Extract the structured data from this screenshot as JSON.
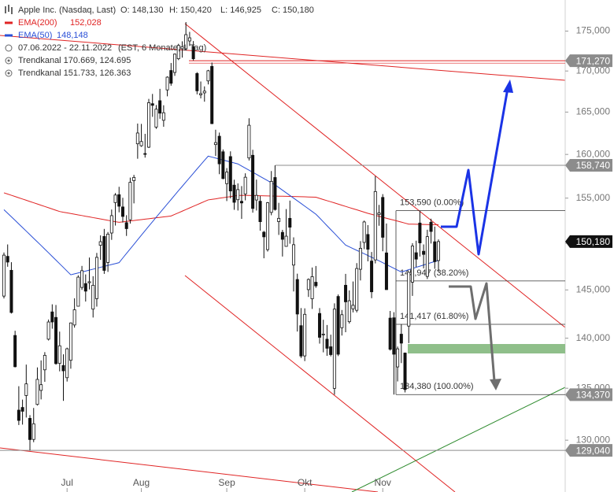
{
  "chart_data": {
    "type": "candlestick",
    "header": {
      "title": "Apple Inc. (Nasdaq, Last)",
      "quote": [
        "O: 148,130",
        "H: 150,420",
        "L: 146,925",
        "C: 150,180"
      ],
      "period": "07.06.2022 - 22.11.2022",
      "period_note": "(EST, 6 Monate, 1 Tag)",
      "studies": [
        "Trendkanal  170.669, 124.695",
        "Trendkanal  151.733, 126.363"
      ]
    },
    "log_scale": true,
    "ylim": [
      127000,
      179000
    ],
    "yticks": [
      {
        "value": 175000,
        "label": "175,000"
      },
      {
        "value": 170000,
        "label": "170,000"
      },
      {
        "value": 165000,
        "label": "165,000"
      },
      {
        "value": 160000,
        "label": "160,000"
      },
      {
        "value": 155000,
        "label": "155,000"
      },
      {
        "value": 150000,
        "label": "150,000"
      },
      {
        "value": 145000,
        "label": "145,000"
      },
      {
        "value": 140000,
        "label": "140,000"
      },
      {
        "value": 135000,
        "label": "135,000"
      },
      {
        "value": 130000,
        "label": "130,000"
      }
    ],
    "up_color": "#ffffff",
    "down_color": "#111111",
    "categories": [
      null,
      null,
      null,
      null,
      null,
      null,
      null,
      null,
      null,
      null,
      null,
      null,
      null,
      null,
      null,
      null,
      null,
      "Jul",
      null,
      null,
      null,
      null,
      null,
      null,
      null,
      null,
      null,
      null,
      null,
      null,
      null,
      null,
      null,
      null,
      null,
      null,
      null,
      "Aug",
      null,
      null,
      null,
      null,
      null,
      null,
      null,
      null,
      null,
      null,
      null,
      null,
      null,
      null,
      null,
      null,
      null,
      null,
      null,
      null,
      null,
      null,
      "Sep",
      null,
      null,
      null,
      null,
      null,
      null,
      null,
      null,
      null,
      null,
      null,
      null,
      null,
      null,
      null,
      null,
      null,
      null,
      null,
      null,
      "Okt",
      null,
      null,
      null,
      null,
      null,
      null,
      null,
      null,
      null,
      null,
      null,
      null,
      null,
      null,
      null,
      null,
      null,
      null,
      null,
      null,
      "Nov",
      null,
      null,
      null,
      null,
      null,
      null,
      null,
      null,
      null,
      null,
      null,
      null,
      null,
      null,
      null
    ],
    "open": [
      144350,
      148580,
      147080,
      140280,
      132870,
      133130,
      134290,
      132080,
      130070,
      133420,
      134790,
      136820,
      139900,
      142700,
      142130,
      137460,
      137250,
      136040,
      137770,
      141350,
      143290,
      145260,
      145670,
      145760,
      142990,
      144080,
      149780,
      150740,
      147920,
      151120,
      154500,
      155390,
      154010,
      152260,
      152580,
      156980,
      161240,
      161010,
      160100,
      160840,
      166010,
      163210,
      166370,
      164020,
      167680,
      170060,
      169820,
      171520,
      172780,
      172770,
      173750,
      173030,
      169690,
      167080,
      167320,
      168780,
      170570,
      161150,
      162130,
      160310,
      156640,
      159750,
      156470,
      154820,
      154640,
      155470,
      159590,
      159900,
      154790,
      154650,
      151210,
      149310,
      153400,
      157340,
      152380,
      151190,
      149660,
      152740,
      147640,
      146100,
      141280,
      138210,
      145030,
      144070,
      145810,
      142540,
      140420,
      139900,
      139130,
      134990,
      144310,
      141070,
      145490,
      141690,
      143020,
      142870,
      147190,
      150090,
      150960,
      148070,
      148200,
      153160,
      155080,
      148950,
      142060,
      142090,
      137110,
      140410,
      138500,
      141240,
      145820,
      148970,
      152220,
      149130,
      146430,
      152310,
      150160,
      148130
    ],
    "high": [
      149000,
      149870,
      147950,
      140760,
      135200,
      133890,
      137340,
      132390,
      133080,
      137060,
      137760,
      138590,
      141910,
      143490,
      143420,
      140670,
      138370,
      139040,
      141610,
      144120,
      146550,
      147550,
      146640,
      148450,
      146450,
      148950,
      150860,
      151570,
      151230,
      153720,
      155570,
      156280,
      155040,
      153090,
      157330,
      157640,
      163630,
      163590,
      162410,
      166590,
      167190,
      165850,
      167810,
      165820,
      169340,
      170990,
      172170,
      173390,
      173710,
      176150,
      174900,
      173740,
      169860,
      168710,
      168110,
      170140,
      171050,
      162900,
      162560,
      160580,
      158420,
      160360,
      157090,
      156670,
      156360,
      157820,
      164260,
      160540,
      157100,
      155240,
      151350,
      154560,
      158080,
      158740,
      154470,
      151470,
      153770,
      154720,
      150640,
      146720,
      143100,
      143070,
      146220,
      147380,
      147540,
      143100,
      141890,
      141350,
      140360,
      143590,
      144520,
      142900,
      146700,
      144950,
      145890,
      147850,
      150230,
      152490,
      151990,
      149050,
      157500,
      154240,
      155450,
      152170,
      142800,
      142670,
      139150,
      141430,
      138550,
      146870,
      150010,
      150280,
      153590,
      149870,
      151480,
      152700,
      151830,
      150420
    ],
    "low": [
      144100,
      147460,
      142530,
      137060,
      131440,
      131480,
      132160,
      129040,
      129810,
      133320,
      133910,
      135630,
      139770,
      140970,
      137330,
      136670,
      133770,
      135660,
      136930,
      141080,
      143280,
      145000,
      143780,
      145050,
      142120,
      143250,
      148200,
      146700,
      146910,
      150370,
      151940,
      153410,
      152280,
      150800,
      152160,
      154410,
      159500,
      160890,
      159630,
      160750,
      164430,
      163000,
      164200,
      163250,
      166900,
      168190,
      169400,
      171350,
      171660,
      172570,
      173120,
      171310,
      167140,
      166650,
      166250,
      168350,
      163560,
      159820,
      157720,
      157140,
      154670,
      154970,
      153690,
      153610,
      152680,
      154750,
      159300,
      153370,
      153610,
      151380,
      148370,
      149100,
      153080,
      153600,
      150910,
      148560,
      149640,
      149950,
      144840,
      140680,
      138000,
      137690,
      144260,
      143010,
      145220,
      139450,
      138570,
      138220,
      138160,
      134370,
      138190,
      140270,
      140610,
      141500,
      142650,
      142650,
      146000,
      149360,
      148040,
      144130,
      147820,
      151920,
      149130,
      145000,
      138750,
      134380,
      135670,
      137490,
      134590,
      139500,
      144370,
      147430,
      148560,
      147290,
      146150,
      149970,
      147240,
      146925
    ],
    "close": [
      148710,
      147960,
      142640,
      137130,
      131880,
      132760,
      135430,
      130060,
      131560,
      135870,
      135350,
      138270,
      141660,
      141660,
      137440,
      139230,
      136720,
      138930,
      141560,
      142920,
      146350,
      147040,
      144870,
      145860,
      145490,
      148470,
      150170,
      147070,
      151000,
      153040,
      155350,
      154090,
      152950,
      151600,
      156790,
      157350,
      162510,
      161510,
      160010,
      166130,
      165810,
      165350,
      164870,
      164920,
      169240,
      168490,
      172100,
      173190,
      173030,
      174550,
      174150,
      171520,
      167570,
      167230,
      167530,
      170030,
      163620,
      161380,
      158910,
      157220,
      157960,
      155810,
      154530,
      155960,
      154460,
      157370,
      163430,
      153840,
      155310,
      152370,
      150700,
      154480,
      156900,
      153720,
      152740,
      150430,
      150770,
      151760,
      149840,
      142480,
      138200,
      142450,
      146100,
      146400,
      145430,
      140090,
      140420,
      138980,
      138340,
      142990,
      138380,
      142410,
      143750,
      143860,
      143390,
      147270,
      149450,
      152340,
      149350,
      144800,
      155740,
      153340,
      150650,
      145030,
      138880,
      138380,
      138920,
      139500,
      134870,
      146870,
      149700,
      148280,
      150040,
      148790,
      150720,
      151290,
      148010,
      150180
    ],
    "series": [
      {
        "name": "EMA(200)",
        "last_label": "152,028",
        "color": "#e02424",
        "values": [
          155600,
          155460,
          155320,
          155180,
          155040,
          154900,
          154760,
          154620,
          154480,
          154340,
          154200,
          154060,
          153920,
          153780,
          153640,
          153500,
          153420,
          153350,
          153270,
          153200,
          153120,
          153050,
          152970,
          152900,
          152820,
          152750,
          152670,
          152600,
          152520,
          152450,
          152370,
          152300,
          152350,
          152400,
          152450,
          152500,
          152550,
          152600,
          152650,
          152700,
          152750,
          152800,
          152850,
          152900,
          152950,
          153000,
          153180,
          153360,
          153540,
          153720,
          153900,
          154080,
          154260,
          154440,
          154620,
          154800,
          154860,
          154920,
          154990,
          155050,
          155110,
          155170,
          155240,
          155300,
          155300,
          155300,
          155300,
          155290,
          155280,
          155270,
          155260,
          155250,
          155240,
          155230,
          155220,
          155210,
          155200,
          155190,
          155180,
          155170,
          155160,
          155150,
          155130,
          155120,
          155100,
          154970,
          154840,
          154710,
          154590,
          154460,
          154330,
          154200,
          154070,
          153940,
          153810,
          153690,
          153560,
          153430,
          153300,
          153190,
          153080,
          152970,
          152860,
          152750,
          152640,
          152540,
          152430,
          152320,
          152210,
          152100,
          152090,
          152080,
          152070,
          152060,
          152050,
          152040,
          152040,
          152028
        ]
      },
      {
        "name": "EMA(50)",
        "last_label": "148,148",
        "color": "#2a4fd6",
        "values": [
          153700,
          153310,
          152910,
          152520,
          152120,
          151730,
          151330,
          150940,
          150540,
          150150,
          149760,
          149360,
          148970,
          148570,
          148180,
          147780,
          147390,
          146990,
          146600,
          146700,
          146800,
          146900,
          147000,
          147100,
          147200,
          147300,
          147400,
          147500,
          147600,
          147700,
          147800,
          147900,
          148400,
          148890,
          149390,
          149880,
          150380,
          150880,
          151370,
          151870,
          152360,
          152860,
          153360,
          153850,
          154350,
          154840,
          155340,
          155840,
          156330,
          156830,
          157320,
          157820,
          158320,
          158810,
          159310,
          159800,
          159690,
          159580,
          159460,
          159350,
          159240,
          159130,
          159010,
          158900,
          158660,
          158420,
          158180,
          157940,
          157700,
          157460,
          157220,
          156980,
          156740,
          156500,
          156200,
          155900,
          155600,
          155300,
          155000,
          154700,
          154400,
          154100,
          153800,
          153500,
          153200,
          152780,
          152350,
          151920,
          151500,
          151080,
          150650,
          150220,
          149800,
          149610,
          149420,
          149230,
          149040,
          148860,
          148670,
          148480,
          148290,
          148100,
          147900,
          147700,
          147500,
          147300,
          147100,
          146900,
          147020,
          147150,
          147270,
          147400,
          147520,
          147650,
          147770,
          147900,
          148020,
          148148
        ]
      }
    ],
    "fib_levels": [
      {
        "value": 153590,
        "label": "153,590 (0.00%)"
      },
      {
        "value": 145947,
        "label": "145,947 (38.20%)"
      },
      {
        "value": 141417,
        "label": "141,417 (61.80%)"
      },
      {
        "value": 134380,
        "label": "134,380 (100.00%)"
      }
    ],
    "price_boxes": [
      {
        "value": 171270,
        "label": "171,270",
        "color": "#8c8c8c",
        "line_color": "#e02424"
      },
      {
        "value": 158740,
        "label": "158,740",
        "color": "#8c8c8c",
        "line_color": "#8c8c8c"
      },
      {
        "value": 150180,
        "label": "150,180",
        "color": "#111111"
      },
      {
        "value": 134370,
        "label": "134,370",
        "color": "#8c8c8c"
      },
      {
        "value": 129040,
        "label": "129,040",
        "color": "#8c8c8c",
        "line_color": "#8c8c8c"
      }
    ]
  }
}
